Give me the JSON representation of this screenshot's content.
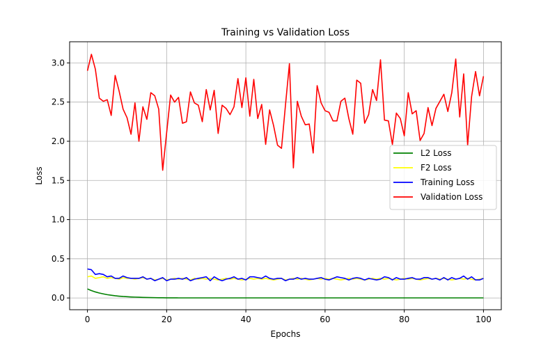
{
  "chart_data": {
    "type": "line",
    "title": "Training vs Validation Loss",
    "xlabel": "Epochs",
    "ylabel": "Loss",
    "xlim": [
      -4.5,
      104.5
    ],
    "ylim": [
      -0.15,
      3.27
    ],
    "xticks": [
      0,
      20,
      40,
      60,
      80,
      100
    ],
    "yticks": [
      0.0,
      0.5,
      1.0,
      1.5,
      2.0,
      2.5,
      3.0
    ],
    "grid": true,
    "legend_position": "center-right",
    "series": [
      {
        "name": "L2 Loss",
        "color": "#008000",
        "x_start": 0,
        "x_step": 1,
        "values": [
          0.115,
          0.094,
          0.077,
          0.063,
          0.052,
          0.042,
          0.035,
          0.028,
          0.023,
          0.019,
          0.016,
          0.013,
          0.011,
          0.009,
          0.007,
          0.006,
          0.005,
          0.004,
          0.003,
          0.003,
          0.002,
          0.002,
          0.002,
          0.001,
          0.001,
          0.001,
          0.001,
          0.001,
          0.001,
          0.001,
          0.001,
          0.001,
          0.001,
          0.001,
          0.001,
          0.001,
          0.001,
          0.001,
          0.001,
          0.001,
          0.001,
          0.001,
          0.001,
          0.001,
          0.001,
          0.001,
          0.001,
          0.001,
          0.001,
          0.001,
          0.001,
          0.001,
          0.001,
          0.001,
          0.001,
          0.001,
          0.001,
          0.001,
          0.001,
          0.001,
          0.001,
          0.001,
          0.001,
          0.001,
          0.001,
          0.001,
          0.001,
          0.001,
          0.001,
          0.001,
          0.001,
          0.001,
          0.001,
          0.001,
          0.001,
          0.001,
          0.001,
          0.001,
          0.001,
          0.001,
          0.001,
          0.001,
          0.001,
          0.001,
          0.001,
          0.001,
          0.001,
          0.001,
          0.001,
          0.001,
          0.001,
          0.001,
          0.001,
          0.001,
          0.001,
          0.001,
          0.001,
          0.001,
          0.001,
          0.001,
          0.001
        ]
      },
      {
        "name": "F2 Loss",
        "color": "#ffff00",
        "x_start": 0,
        "x_step": 1,
        "values": [
          0.27,
          0.28,
          0.25,
          0.26,
          0.27,
          0.25,
          0.26,
          0.25,
          0.24,
          0.26,
          0.25,
          0.25,
          0.24,
          0.25,
          0.26,
          0.24,
          0.25,
          0.23,
          0.24,
          0.25,
          0.23,
          0.24,
          0.25,
          0.24,
          0.25,
          0.24,
          0.23,
          0.25,
          0.24,
          0.25,
          0.24,
          0.25,
          0.24,
          0.23,
          0.24,
          0.25,
          0.24,
          0.25,
          0.24,
          0.23,
          0.24,
          0.25,
          0.24,
          0.25,
          0.24,
          0.25,
          0.24,
          0.23,
          0.24,
          0.25,
          0.23,
          0.24,
          0.25,
          0.24,
          0.25,
          0.24,
          0.23,
          0.24,
          0.25,
          0.24,
          0.25,
          0.24,
          0.25,
          0.24,
          0.23,
          0.24,
          0.25,
          0.24,
          0.25,
          0.24,
          0.23,
          0.24,
          0.25,
          0.24,
          0.25,
          0.24,
          0.25,
          0.24,
          0.23,
          0.24,
          0.25,
          0.24,
          0.25,
          0.24,
          0.23,
          0.24,
          0.25,
          0.24,
          0.25,
          0.24,
          0.25,
          0.24,
          0.23,
          0.24,
          0.25,
          0.24,
          0.25,
          0.24,
          0.23,
          0.24,
          0.25
        ]
      },
      {
        "name": "Training Loss",
        "color": "#0000ff",
        "x_start": 0,
        "x_step": 1,
        "values": [
          0.37,
          0.36,
          0.3,
          0.31,
          0.3,
          0.27,
          0.28,
          0.25,
          0.25,
          0.28,
          0.26,
          0.25,
          0.25,
          0.25,
          0.27,
          0.24,
          0.25,
          0.22,
          0.24,
          0.26,
          0.22,
          0.24,
          0.24,
          0.25,
          0.24,
          0.26,
          0.22,
          0.24,
          0.25,
          0.26,
          0.27,
          0.22,
          0.27,
          0.24,
          0.22,
          0.24,
          0.25,
          0.27,
          0.24,
          0.25,
          0.23,
          0.27,
          0.27,
          0.26,
          0.25,
          0.28,
          0.25,
          0.24,
          0.25,
          0.25,
          0.22,
          0.24,
          0.24,
          0.26,
          0.24,
          0.25,
          0.24,
          0.24,
          0.25,
          0.26,
          0.24,
          0.23,
          0.25,
          0.27,
          0.26,
          0.25,
          0.23,
          0.25,
          0.26,
          0.25,
          0.23,
          0.25,
          0.24,
          0.23,
          0.24,
          0.27,
          0.26,
          0.23,
          0.26,
          0.24,
          0.24,
          0.25,
          0.26,
          0.24,
          0.24,
          0.26,
          0.26,
          0.24,
          0.25,
          0.23,
          0.26,
          0.23,
          0.26,
          0.24,
          0.25,
          0.28,
          0.24,
          0.27,
          0.23,
          0.23,
          0.25
        ]
      },
      {
        "name": "Validation Loss",
        "color": "#ff0000",
        "x_start": 0,
        "x_step": 1,
        "values": [
          2.9,
          3.11,
          2.92,
          2.55,
          2.51,
          2.53,
          2.33,
          2.84,
          2.64,
          2.41,
          2.3,
          2.09,
          2.49,
          2.0,
          2.44,
          2.28,
          2.62,
          2.58,
          2.41,
          1.63,
          2.11,
          2.59,
          2.5,
          2.56,
          2.23,
          2.25,
          2.63,
          2.49,
          2.46,
          2.25,
          2.66,
          2.4,
          2.65,
          2.1,
          2.46,
          2.42,
          2.34,
          2.44,
          2.8,
          2.43,
          2.81,
          2.32,
          2.79,
          2.29,
          2.47,
          1.96,
          2.4,
          2.2,
          1.95,
          1.91,
          2.46,
          2.99,
          1.66,
          2.51,
          2.32,
          2.21,
          2.22,
          1.85,
          2.71,
          2.49,
          2.39,
          2.37,
          2.26,
          2.26,
          2.51,
          2.55,
          2.29,
          2.09,
          2.78,
          2.74,
          2.23,
          2.34,
          2.66,
          2.52,
          3.04,
          2.27,
          2.26,
          1.96,
          2.36,
          2.29,
          2.07,
          2.62,
          2.35,
          2.39,
          2.01,
          2.1,
          2.43,
          2.2,
          2.42,
          2.51,
          2.6,
          2.38,
          2.62,
          3.05,
          2.31,
          2.86,
          1.95,
          2.57,
          2.89,
          2.58,
          2.83
        ]
      }
    ]
  }
}
